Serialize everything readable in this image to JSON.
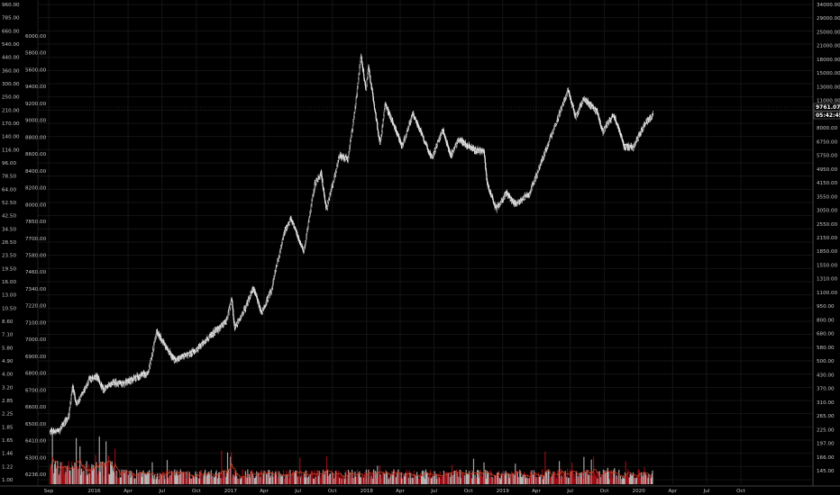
{
  "chart_data": {
    "type": "candlestick",
    "background": "#000000",
    "candle_color": "#e8e8e8",
    "volume_up_color": "#d8d8d8",
    "volume_down_color": "#c0101a",
    "volume_ma_color": "#d04020",
    "grid": true,
    "scale": "log",
    "x_labels": [
      "Sep",
      "2016",
      "Apr",
      "Jul",
      "Oct",
      "2017",
      "Apr",
      "Jul",
      "Oct",
      "2018",
      "Apr",
      "Jul",
      "Oct",
      "2019",
      "Apr",
      "Jul",
      "Oct",
      "2020",
      "Apr",
      "Jul",
      "Oct"
    ],
    "x_dates": [
      "2015-09-01",
      "2016-01-01",
      "2016-04-01",
      "2016-07-01",
      "2016-10-01",
      "2017-01-01",
      "2017-04-01",
      "2017-07-01",
      "2017-10-01",
      "2018-01-01",
      "2018-04-01",
      "2018-07-01",
      "2018-10-01",
      "2019-01-01",
      "2019-04-01",
      "2019-07-01",
      "2019-10-01",
      "2020-01-01",
      "2020-04-01",
      "2020-07-01",
      "2020-10-01"
    ],
    "left_axis_outer": [
      "960.00",
      "785.00",
      "660.00",
      "540.00",
      "440.00",
      "360.00",
      "300.00",
      "250.00",
      "210.00",
      "170.00",
      "140.00",
      "116.00",
      "96.00",
      "78.50",
      "64.00",
      "52.50",
      "42.50",
      "34.50",
      "28.50",
      "23.50",
      "19.50",
      "16.00",
      "13.00",
      "10.50",
      "8.60",
      "7.10",
      "5.80",
      "4.90",
      "4.00",
      "3.20",
      "2.85",
      "2.25",
      "1.85",
      "1.65",
      "1.46",
      "1.22",
      "1.00"
    ],
    "left_axis_inner": [
      "6000.00",
      "5800.00",
      "5600.00",
      "9400.00",
      "9200.00",
      "9000.00",
      "8800.00",
      "8600.00",
      "8400.00",
      "8200.00",
      "8000.00",
      "7850.00",
      "7700.00",
      "7580.00",
      "7460.00",
      "7340.00",
      "7220.00",
      "7100.00",
      "7000.00",
      "6900.00",
      "6800.00",
      "6700.00",
      "6600.00",
      "6500.00",
      "6410.00",
      "6300.00",
      "6236.00"
    ],
    "right_axis": [
      "34000.00",
      "29000.00",
      "25000.00",
      "21000.00",
      "18000.00",
      "15000.00",
      "13000.00",
      "11000.00",
      "9500.00",
      "8000.00",
      "6750.00",
      "5750.00",
      "4950.00",
      "4150.00",
      "3550.00",
      "3050.00",
      "2550.00",
      "2150.00",
      "1850.00",
      "1550.00",
      "1310.00",
      "1100.00",
      "950.00",
      "800.00",
      "680.00",
      "580.00",
      "500.00",
      "430.00",
      "370.00",
      "310.00",
      "265.00",
      "225.00",
      "197.00",
      "166.00",
      "145.00"
    ],
    "last_price": "9761.07",
    "countdown": "05:42:45",
    "price_path": [
      {
        "t": "2015-09-05",
        "p": 235
      },
      {
        "t": "2015-10-01",
        "p": 240
      },
      {
        "t": "2015-10-25",
        "p": 285
      },
      {
        "t": "2015-11-04",
        "p": 400
      },
      {
        "t": "2015-11-15",
        "p": 325
      },
      {
        "t": "2015-12-01",
        "p": 370
      },
      {
        "t": "2015-12-20",
        "p": 440
      },
      {
        "t": "2016-01-10",
        "p": 450
      },
      {
        "t": "2016-01-25",
        "p": 385
      },
      {
        "t": "2016-02-20",
        "p": 420
      },
      {
        "t": "2016-03-20",
        "p": 415
      },
      {
        "t": "2016-04-20",
        "p": 445
      },
      {
        "t": "2016-05-25",
        "p": 470
      },
      {
        "t": "2016-06-17",
        "p": 760
      },
      {
        "t": "2016-07-05",
        "p": 670
      },
      {
        "t": "2016-08-03",
        "p": 545
      },
      {
        "t": "2016-09-01",
        "p": 575
      },
      {
        "t": "2016-10-01",
        "p": 615
      },
      {
        "t": "2016-11-01",
        "p": 710
      },
      {
        "t": "2016-12-20",
        "p": 860
      },
      {
        "t": "2017-01-04",
        "p": 1120
      },
      {
        "t": "2017-01-12",
        "p": 790
      },
      {
        "t": "2017-02-10",
        "p": 1010
      },
      {
        "t": "2017-03-03",
        "p": 1280
      },
      {
        "t": "2017-03-25",
        "p": 950
      },
      {
        "t": "2017-04-20",
        "p": 1240
      },
      {
        "t": "2017-05-24",
        "p": 2400
      },
      {
        "t": "2017-06-12",
        "p": 2900
      },
      {
        "t": "2017-07-16",
        "p": 1950
      },
      {
        "t": "2017-08-15",
        "p": 4300
      },
      {
        "t": "2017-09-01",
        "p": 4900
      },
      {
        "t": "2017-09-15",
        "p": 3200
      },
      {
        "t": "2017-10-20",
        "p": 6000
      },
      {
        "t": "2017-11-12",
        "p": 5800
      },
      {
        "t": "2017-12-01",
        "p": 10500
      },
      {
        "t": "2017-12-17",
        "p": 19500
      },
      {
        "t": "2017-12-30",
        "p": 13000
      },
      {
        "t": "2018-01-06",
        "p": 17000
      },
      {
        "t": "2018-02-06",
        "p": 6900
      },
      {
        "t": "2018-02-20",
        "p": 11000
      },
      {
        "t": "2018-03-20",
        "p": 8200
      },
      {
        "t": "2018-04-06",
        "p": 6700
      },
      {
        "t": "2018-05-05",
        "p": 9800
      },
      {
        "t": "2018-06-25",
        "p": 5900
      },
      {
        "t": "2018-07-25",
        "p": 8200
      },
      {
        "t": "2018-08-14",
        "p": 6000
      },
      {
        "t": "2018-09-05",
        "p": 7300
      },
      {
        "t": "2018-10-15",
        "p": 6500
      },
      {
        "t": "2018-11-12",
        "p": 6300
      },
      {
        "t": "2018-11-20",
        "p": 4400
      },
      {
        "t": "2018-12-15",
        "p": 3200
      },
      {
        "t": "2019-01-10",
        "p": 3900
      },
      {
        "t": "2019-02-05",
        "p": 3400
      },
      {
        "t": "2019-03-15",
        "p": 3900
      },
      {
        "t": "2019-04-05",
        "p": 5000
      },
      {
        "t": "2019-05-15",
        "p": 8000
      },
      {
        "t": "2019-06-26",
        "p": 13000
      },
      {
        "t": "2019-07-16",
        "p": 9500
      },
      {
        "t": "2019-08-06",
        "p": 11800
      },
      {
        "t": "2019-09-10",
        "p": 10200
      },
      {
        "t": "2019-09-26",
        "p": 8000
      },
      {
        "t": "2019-10-26",
        "p": 9800
      },
      {
        "t": "2019-11-22",
        "p": 6800
      },
      {
        "t": "2019-12-18",
        "p": 6600
      },
      {
        "t": "2020-01-15",
        "p": 8700
      },
      {
        "t": "2020-02-08",
        "p": 9761
      }
    ]
  }
}
